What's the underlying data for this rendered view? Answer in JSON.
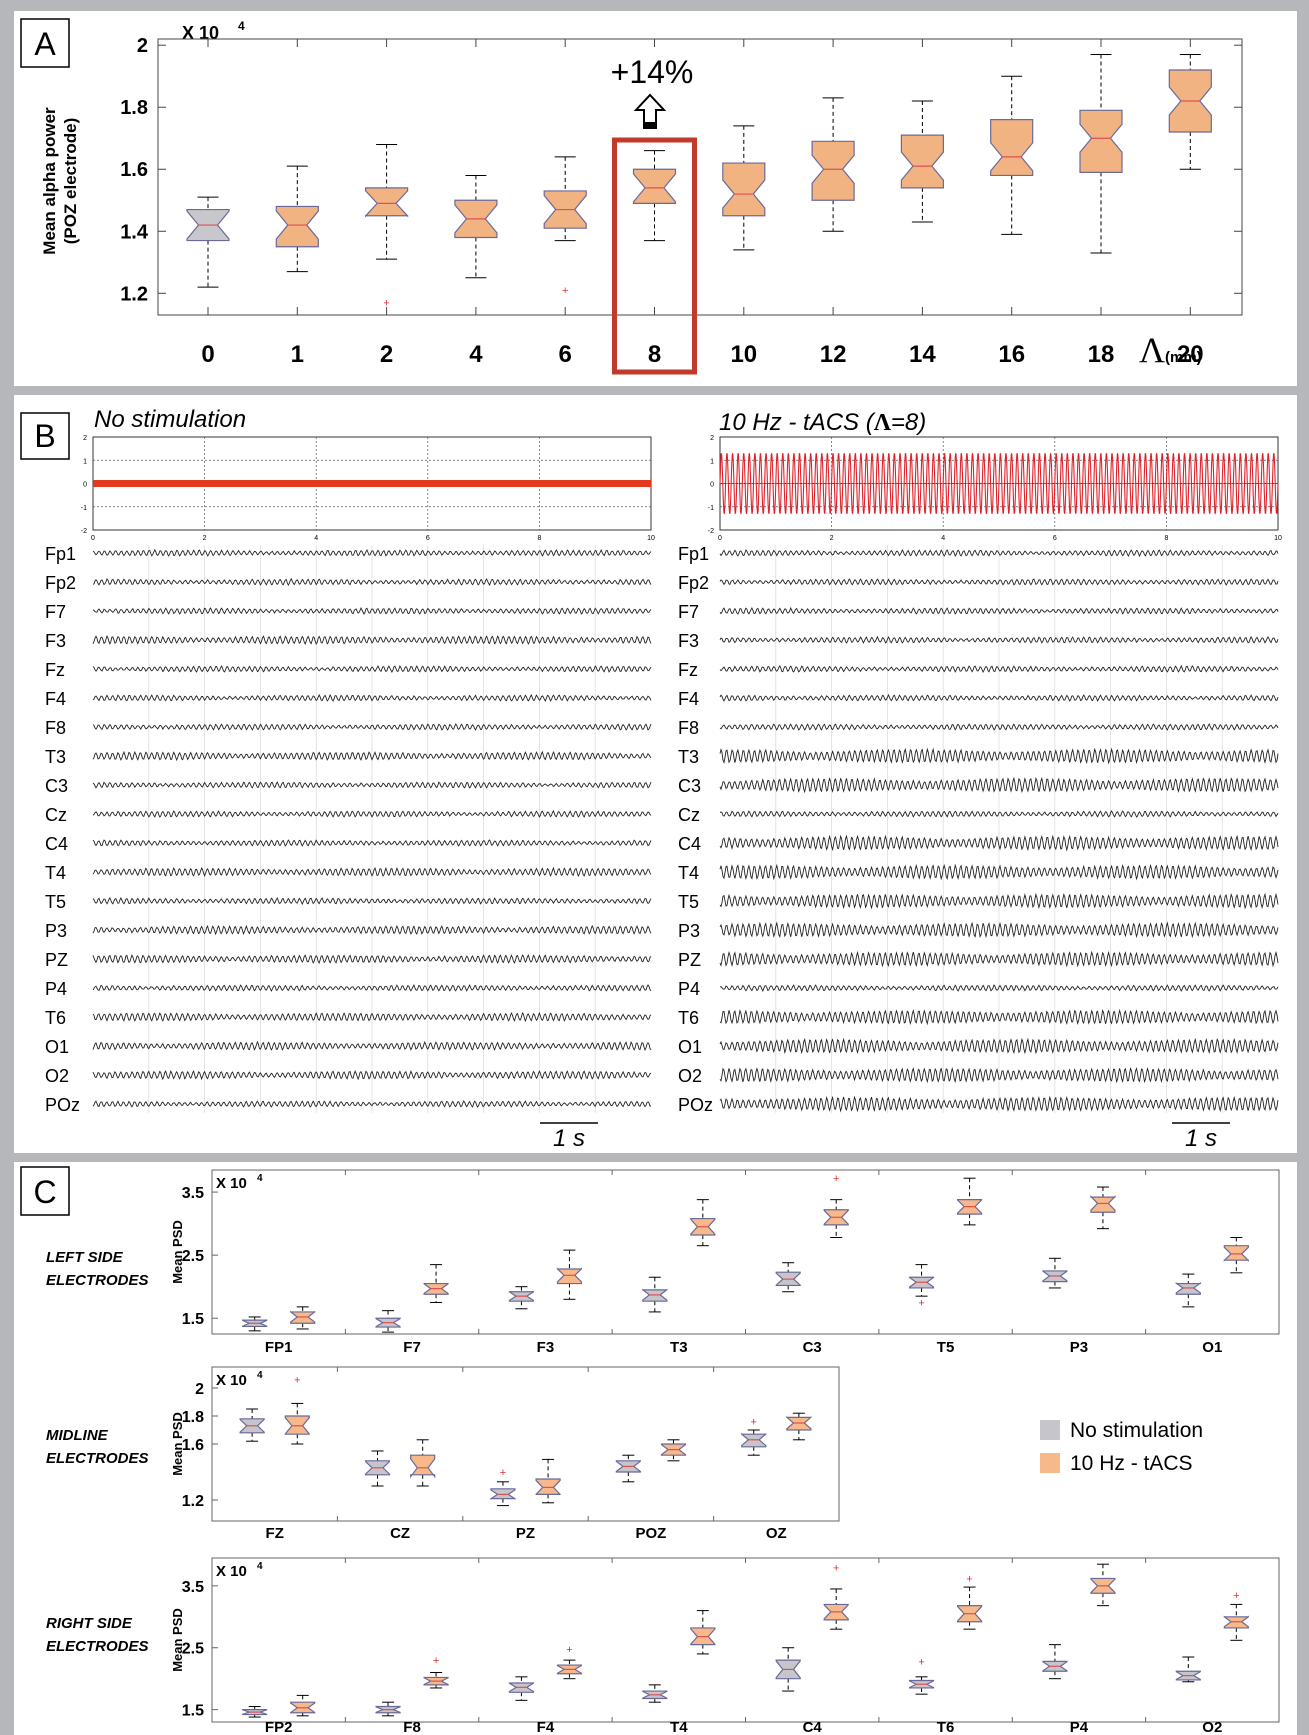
{
  "panelA": {
    "label": "A",
    "exponent_base": "X 10",
    "exponent_power": "4",
    "ylabel_line1": "Mean alpha power",
    "ylabel_line2": "(POZ electrode)",
    "xlabel_symbol": "Λ",
    "xlabel_unit": "(mm)",
    "annotation": "+14%",
    "highlight_category": "8",
    "colors": {
      "gray_box": "#c8c8cc",
      "orange_box": "#f2b382",
      "outline": "#6a6a9a",
      "median": "#e05050",
      "highlight": "#c0392b"
    }
  },
  "panelB": {
    "label": "B",
    "left_title": "No stimulation",
    "right_title_main": "10 Hz - tACS  (",
    "right_title_symbol": "Λ",
    "right_title_end": "=8)",
    "scale_bar_label": "1 s",
    "channels": [
      "Fp1",
      "Fp2",
      "F7",
      "F3",
      "Fz",
      "F4",
      "F8",
      "T3",
      "C3",
      "Cz",
      "C4",
      "T4",
      "T5",
      "P3",
      "PZ",
      "P4",
      "T6",
      "O1",
      "O2",
      "POz"
    ],
    "stim_colors": {
      "flat": "#e23a1e",
      "sine": "#e0222a"
    }
  },
  "panelC": {
    "label": "C",
    "group_labels": [
      [
        "LEFT SIDE",
        "ELECTRODES"
      ],
      [
        "MIDLINE",
        "ELECTRODES"
      ],
      [
        "RIGHT SIDE",
        "ELECTRODES"
      ]
    ],
    "exponent_base": "X 10",
    "exponent_power": "4",
    "ylabel": "Mean PSD",
    "legend": [
      "No stimulation",
      "10 Hz - tACS"
    ],
    "colors": {
      "no_stim": "#c5c5cb",
      "tacs": "#f7b88a"
    }
  },
  "chart_data": [
    {
      "type": "box",
      "title": "",
      "xlabel": "Λ (mm)",
      "ylabel": "Mean alpha power (POZ electrode)",
      "y_scale_note": "X 10^4",
      "ylim": [
        1.13,
        2.02
      ],
      "yticks": [
        1.2,
        1.4,
        1.6,
        1.8,
        2.0
      ],
      "categories": [
        "0",
        "1",
        "2",
        "4",
        "6",
        "8",
        "10",
        "12",
        "14",
        "16",
        "18",
        "20"
      ],
      "series": [
        {
          "values": [
            {
              "q1": 1.37,
              "median": 1.42,
              "q3": 1.47,
              "low": 1.22,
              "high": 1.51,
              "color": "gray"
            },
            {
              "q1": 1.35,
              "median": 1.42,
              "q3": 1.48,
              "low": 1.27,
              "high": 1.61,
              "color": "orange"
            },
            {
              "q1": 1.45,
              "median": 1.49,
              "q3": 1.54,
              "low": 1.31,
              "high": 1.68,
              "color": "orange",
              "outliers": [
                1.17
              ]
            },
            {
              "q1": 1.38,
              "median": 1.44,
              "q3": 1.5,
              "low": 1.25,
              "high": 1.58,
              "color": "orange"
            },
            {
              "q1": 1.41,
              "median": 1.47,
              "q3": 1.53,
              "low": 1.37,
              "high": 1.64,
              "color": "orange",
              "outliers": [
                1.21
              ]
            },
            {
              "q1": 1.49,
              "median": 1.54,
              "q3": 1.6,
              "low": 1.37,
              "high": 1.66,
              "color": "orange"
            },
            {
              "q1": 1.45,
              "median": 1.52,
              "q3": 1.62,
              "low": 1.34,
              "high": 1.74,
              "color": "orange"
            },
            {
              "q1": 1.5,
              "median": 1.6,
              "q3": 1.69,
              "low": 1.4,
              "high": 1.83,
              "color": "orange"
            },
            {
              "q1": 1.54,
              "median": 1.61,
              "q3": 1.71,
              "low": 1.43,
              "high": 1.82,
              "color": "orange"
            },
            {
              "q1": 1.58,
              "median": 1.64,
              "q3": 1.76,
              "low": 1.39,
              "high": 1.9,
              "color": "orange"
            },
            {
              "q1": 1.59,
              "median": 1.7,
              "q3": 1.79,
              "low": 1.33,
              "high": 1.97,
              "color": "orange"
            },
            {
              "q1": 1.72,
              "median": 1.82,
              "q3": 1.92,
              "low": 1.6,
              "high": 1.97,
              "color": "orange"
            }
          ]
        }
      ]
    },
    {
      "type": "line",
      "title": "No stimulation",
      "x_range": [
        0,
        10
      ],
      "xticks": [
        "0",
        "2",
        "4",
        "6",
        "8",
        "10"
      ],
      "ylim": [
        -2,
        2
      ],
      "yticks": [
        "2",
        "1",
        "0",
        "-1",
        "-2"
      ],
      "series": [
        {
          "values": [
            0,
            0
          ]
        }
      ]
    },
    {
      "type": "line",
      "title": "10 Hz - tACS (Λ=8)",
      "x_range": [
        0,
        10
      ],
      "xticks": [
        "0",
        "2",
        "4",
        "6",
        "8",
        "10"
      ],
      "ylim": [
        -2,
        2
      ],
      "yticks": [
        "2",
        "1",
        "0",
        "-1",
        "-2"
      ],
      "frequency_hz": 10,
      "amplitude": 1.3
    },
    {
      "type": "box",
      "title": "LEFT SIDE ELECTRODES",
      "ylabel": "Mean PSD",
      "y_scale_note": "X 10^4",
      "ylim": [
        1.25,
        3.85
      ],
      "yticks": [
        1.5,
        2.5,
        3.5
      ],
      "categories": [
        "FP1",
        "F7",
        "F3",
        "T3",
        "C3",
        "T5",
        "P3",
        "O1"
      ],
      "series": [
        {
          "name": "No stimulation",
          "values": [
            {
              "q1": 1.37,
              "median": 1.42,
              "q3": 1.47,
              "low": 1.3,
              "high": 1.52
            },
            {
              "q1": 1.36,
              "median": 1.43,
              "q3": 1.5,
              "low": 1.28,
              "high": 1.62
            },
            {
              "q1": 1.77,
              "median": 1.85,
              "q3": 1.92,
              "low": 1.65,
              "high": 2.0
            },
            {
              "q1": 1.77,
              "median": 1.87,
              "q3": 1.95,
              "low": 1.6,
              "high": 2.15
            },
            {
              "q1": 2.02,
              "median": 2.12,
              "q3": 2.23,
              "low": 1.92,
              "high": 2.38
            },
            {
              "q1": 1.98,
              "median": 2.07,
              "q3": 2.15,
              "low": 1.85,
              "high": 2.35,
              "outliers": [
                1.75
              ]
            },
            {
              "q1": 2.08,
              "median": 2.17,
              "q3": 2.25,
              "low": 1.98,
              "high": 2.45
            },
            {
              "q1": 1.88,
              "median": 1.98,
              "q3": 2.05,
              "low": 1.68,
              "high": 2.2
            }
          ]
        },
        {
          "name": "10 Hz - tACS",
          "values": [
            {
              "q1": 1.42,
              "median": 1.52,
              "q3": 1.6,
              "low": 1.33,
              "high": 1.68
            },
            {
              "q1": 1.88,
              "median": 1.97,
              "q3": 2.05,
              "low": 1.75,
              "high": 2.35
            },
            {
              "q1": 2.05,
              "median": 2.18,
              "q3": 2.28,
              "low": 1.8,
              "high": 2.58
            },
            {
              "q1": 2.82,
              "median": 2.95,
              "q3": 3.08,
              "low": 2.65,
              "high": 3.38
            },
            {
              "q1": 2.98,
              "median": 3.1,
              "q3": 3.22,
              "low": 2.78,
              "high": 3.38,
              "outliers": [
                3.72
              ]
            },
            {
              "q1": 3.15,
              "median": 3.27,
              "q3": 3.38,
              "low": 2.98,
              "high": 3.72
            },
            {
              "q1": 3.18,
              "median": 3.32,
              "q3": 3.42,
              "low": 2.92,
              "high": 3.58
            },
            {
              "q1": 2.42,
              "median": 2.52,
              "q3": 2.65,
              "low": 2.22,
              "high": 2.78
            }
          ]
        }
      ]
    },
    {
      "type": "box",
      "title": "MIDLINE ELECTRODES",
      "ylabel": "Mean PSD",
      "y_scale_note": "X 10^4",
      "ylim": [
        1.05,
        2.15
      ],
      "yticks": [
        1.2,
        1.6,
        1.8,
        2
      ],
      "categories": [
        "FZ",
        "CZ",
        "PZ",
        "POZ",
        "OZ"
      ],
      "series": [
        {
          "name": "No stimulation",
          "values": [
            {
              "q1": 1.68,
              "median": 1.73,
              "q3": 1.78,
              "low": 1.62,
              "high": 1.85
            },
            {
              "q1": 1.38,
              "median": 1.43,
              "q3": 1.48,
              "low": 1.3,
              "high": 1.55
            },
            {
              "q1": 1.21,
              "median": 1.24,
              "q3": 1.28,
              "low": 1.16,
              "high": 1.33,
              "outliers": [
                1.4
              ]
            },
            {
              "q1": 1.4,
              "median": 1.44,
              "q3": 1.48,
              "low": 1.33,
              "high": 1.52
            },
            {
              "q1": 1.58,
              "median": 1.63,
              "q3": 1.67,
              "low": 1.52,
              "high": 1.7,
              "outliers": [
                1.76
              ]
            }
          ]
        },
        {
          "name": "10 Hz - tACS",
          "values": [
            {
              "q1": 1.67,
              "median": 1.73,
              "q3": 1.8,
              "low": 1.6,
              "high": 1.89,
              "outliers": [
                2.06
              ]
            },
            {
              "q1": 1.38,
              "median": 1.43,
              "q3": 1.52,
              "low": 1.3,
              "high": 1.63
            },
            {
              "q1": 1.24,
              "median": 1.29,
              "q3": 1.35,
              "low": 1.18,
              "high": 1.49
            },
            {
              "q1": 1.52,
              "median": 1.56,
              "q3": 1.6,
              "low": 1.48,
              "high": 1.63
            },
            {
              "q1": 1.7,
              "median": 1.75,
              "q3": 1.79,
              "low": 1.63,
              "high": 1.82
            }
          ]
        }
      ]
    },
    {
      "type": "box",
      "title": "RIGHT SIDE ELECTRODES",
      "ylabel": "Mean PSD",
      "y_scale_note": "X 10^4",
      "ylim": [
        1.3,
        3.95
      ],
      "yticks": [
        1.5,
        2.5,
        3.5
      ],
      "categories": [
        "FP2",
        "F8",
        "F4",
        "T4",
        "C4",
        "T6",
        "P4",
        "O2"
      ],
      "series": [
        {
          "name": "No stimulation",
          "values": [
            {
              "q1": 1.42,
              "median": 1.46,
              "q3": 1.5,
              "low": 1.38,
              "high": 1.55
            },
            {
              "q1": 1.45,
              "median": 1.5,
              "q3": 1.55,
              "low": 1.4,
              "high": 1.62
            },
            {
              "q1": 1.78,
              "median": 1.86,
              "q3": 1.93,
              "low": 1.65,
              "high": 2.03
            },
            {
              "q1": 1.68,
              "median": 1.74,
              "q3": 1.8,
              "low": 1.62,
              "high": 1.9
            },
            {
              "q1": 2.0,
              "median": 2.15,
              "q3": 2.3,
              "low": 1.8,
              "high": 2.5
            },
            {
              "q1": 1.85,
              "median": 1.91,
              "q3": 1.97,
              "low": 1.75,
              "high": 2.03,
              "outliers": [
                2.28
              ]
            },
            {
              "q1": 2.12,
              "median": 2.2,
              "q3": 2.28,
              "low": 2.0,
              "high": 2.55
            },
            {
              "q1": 1.98,
              "median": 2.05,
              "q3": 2.12,
              "low": 1.95,
              "high": 2.35
            }
          ]
        },
        {
          "name": "10 Hz - tACS",
          "values": [
            {
              "q1": 1.45,
              "median": 1.53,
              "q3": 1.62,
              "low": 1.4,
              "high": 1.73
            },
            {
              "q1": 1.9,
              "median": 1.96,
              "q3": 2.02,
              "low": 1.85,
              "high": 2.1,
              "outliers": [
                2.3
              ]
            },
            {
              "q1": 2.08,
              "median": 2.15,
              "q3": 2.22,
              "low": 2.0,
              "high": 2.3,
              "outliers": [
                2.48
              ]
            },
            {
              "q1": 2.55,
              "median": 2.68,
              "q3": 2.82,
              "low": 2.4,
              "high": 3.1
            },
            {
              "q1": 2.95,
              "median": 3.08,
              "q3": 3.2,
              "low": 2.8,
              "high": 3.45,
              "outliers": [
                3.8
              ]
            },
            {
              "q1": 2.92,
              "median": 3.05,
              "q3": 3.18,
              "low": 2.8,
              "high": 3.48,
              "outliers": [
                3.62
              ]
            },
            {
              "q1": 3.38,
              "median": 3.5,
              "q3": 3.62,
              "low": 3.18,
              "high": 3.85
            },
            {
              "q1": 2.82,
              "median": 2.92,
              "q3": 3.0,
              "low": 2.62,
              "high": 3.2,
              "outliers": [
                3.35
              ]
            }
          ]
        }
      ]
    }
  ]
}
